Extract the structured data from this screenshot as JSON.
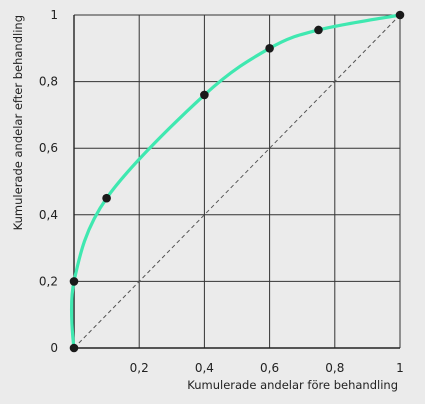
{
  "chart_data": {
    "type": "line",
    "title": "",
    "xlabel": "Kumulerade andelar före behandling",
    "ylabel": "Kumulerade andelar efter behandling",
    "xlim": [
      0,
      1
    ],
    "ylim": [
      0,
      1
    ],
    "x_ticks": [
      0,
      0.2,
      0.4,
      0.6,
      0.8,
      1
    ],
    "x_tick_labels": [
      "",
      "0,2",
      "0,4",
      "0,6",
      "0,8",
      "1"
    ],
    "y_ticks": [
      0,
      0.2,
      0.4,
      0.6,
      0.8,
      1
    ],
    "y_tick_labels": [
      "0",
      "0,2",
      "0,4",
      "0,6",
      "0,8",
      "1"
    ],
    "grid": true,
    "series": [
      {
        "color": "#3fe8b0",
        "points": [
          {
            "x": 0,
            "y": 0
          },
          {
            "x": 0,
            "y": 0.2
          },
          {
            "x": 0.1,
            "y": 0.45
          },
          {
            "x": 0.4,
            "y": 0.76
          },
          {
            "x": 0.6,
            "y": 0.9
          },
          {
            "x": 0.75,
            "y": 0.955
          },
          {
            "x": 1,
            "y": 1
          }
        ]
      }
    ],
    "reference_line": {
      "from": [
        0,
        0
      ],
      "to": [
        1,
        1
      ],
      "style": "dashed",
      "color": "#555555"
    },
    "marker_color": "#1a1a1a",
    "axis_color": "#222222",
    "grid_color": "#333333"
  }
}
